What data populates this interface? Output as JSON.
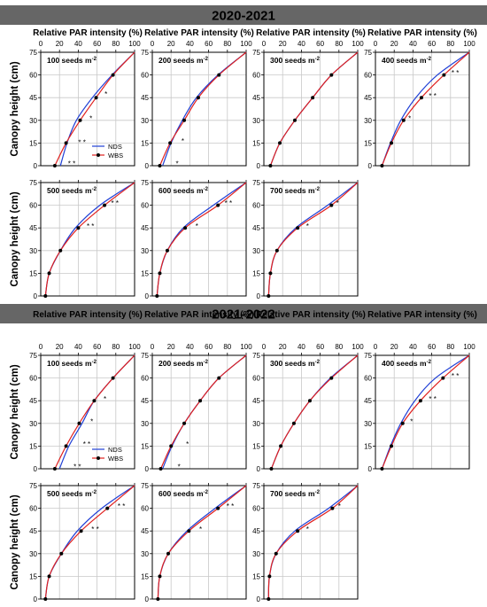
{
  "colors": {
    "banner_bg": "#666666",
    "banner_text": "#000000",
    "nds": "#1f3fd6",
    "wbs": "#e0201e",
    "grid": "#c8c8c8",
    "axis": "#000000"
  },
  "labels": {
    "x_axis": "Relative PAR intensity (%)",
    "y_axis": "Canopy height (cm)",
    "density_unit": "seeds m",
    "density_exp": "-2",
    "legend": [
      "NDS",
      "WBS"
    ]
  },
  "chart_data": [
    {
      "type": "line",
      "season": "2020-2021",
      "x_ticks": [
        0,
        20,
        40,
        60,
        80,
        100
      ],
      "y_ticks": [
        0,
        15,
        30,
        45,
        60,
        75
      ],
      "xlim": [
        0,
        100
      ],
      "ylim": [
        0,
        75
      ],
      "panels": [
        {
          "density": "100",
          "legend": true,
          "series": [
            {
              "name": "NDS",
              "x": [
                21,
                28,
                38,
                55,
                76,
                100
              ],
              "y": [
                0,
                15,
                30,
                45,
                60,
                75
              ]
            },
            {
              "name": "WBS",
              "x": [
                15,
                27,
                42,
                59,
                77,
                100
              ],
              "y": [
                0,
                15,
                30,
                45,
                60,
                75
              ]
            }
          ],
          "marks": [
            {
              "x": 29,
              "y": 2,
              "t": "* *"
            },
            {
              "x": 40,
              "y": 16,
              "t": "* *"
            },
            {
              "x": 52,
              "y": 32,
              "t": "*"
            },
            {
              "x": 68,
              "y": 48,
              "t": "*"
            }
          ]
        },
        {
          "density": "200",
          "series": [
            {
              "name": "NDS",
              "x": [
                11,
                20,
                32,
                47,
                70,
                100
              ],
              "y": [
                0,
                15,
                30,
                45,
                60,
                75
              ]
            },
            {
              "name": "WBS",
              "x": [
                8,
                19,
                34,
                49,
                71,
                100
              ],
              "y": [
                0,
                15,
                30,
                45,
                60,
                75
              ]
            }
          ],
          "marks": [
            {
              "x": 25,
              "y": 2,
              "t": "*"
            },
            {
              "x": 31,
              "y": 17,
              "t": "*"
            }
          ]
        },
        {
          "density": "300",
          "series": [
            {
              "name": "NDS",
              "x": [
                7,
                17,
                33,
                52,
                72,
                100
              ],
              "y": [
                0,
                15,
                30,
                45,
                60,
                75
              ]
            },
            {
              "name": "WBS",
              "x": [
                7,
                17,
                33,
                52,
                72,
                100
              ],
              "y": [
                0,
                15,
                30,
                45,
                60,
                75
              ]
            }
          ],
          "marks": []
        },
        {
          "density": "400",
          "series": [
            {
              "name": "NDS",
              "x": [
                7,
                16,
                27,
                43,
                66,
                100
              ],
              "y": [
                0,
                15,
                30,
                45,
                60,
                75
              ]
            },
            {
              "name": "WBS",
              "x": [
                7,
                17,
                30,
                49,
                73,
                100
              ],
              "y": [
                0,
                15,
                30,
                45,
                60,
                75
              ]
            }
          ],
          "marks": [
            {
              "x": 35,
              "y": 32,
              "t": "*"
            },
            {
              "x": 57,
              "y": 47,
              "t": "* *"
            },
            {
              "x": 81,
              "y": 62,
              "t": "* *"
            }
          ]
        },
        {
          "density": "500",
          "series": [
            {
              "name": "NDS",
              "x": [
                5,
                9,
                21,
                37,
                63,
                100
              ],
              "y": [
                0,
                15,
                30,
                45,
                60,
                75
              ]
            },
            {
              "name": "WBS",
              "x": [
                5,
                9,
                21,
                40,
                68,
                100
              ],
              "y": [
                0,
                15,
                30,
                45,
                60,
                75
              ]
            }
          ],
          "marks": [
            {
              "x": 49,
              "y": 47,
              "t": "* *"
            },
            {
              "x": 75,
              "y": 62,
              "t": "* *"
            }
          ]
        },
        {
          "density": "600",
          "series": [
            {
              "name": "NDS",
              "x": [
                5,
                8,
                16,
                33,
                65,
                100
              ],
              "y": [
                0,
                15,
                30,
                45,
                60,
                75
              ]
            },
            {
              "name": "WBS",
              "x": [
                5,
                8,
                16,
                35,
                70,
                100
              ],
              "y": [
                0,
                15,
                30,
                45,
                60,
                75
              ]
            }
          ],
          "marks": [
            {
              "x": 46,
              "y": 47,
              "t": "*"
            },
            {
              "x": 77,
              "y": 62,
              "t": "* *"
            }
          ]
        },
        {
          "density": "700",
          "series": [
            {
              "name": "NDS",
              "x": [
                5,
                7,
                14,
                34,
                68,
                100
              ],
              "y": [
                0,
                15,
                30,
                45,
                60,
                75
              ]
            },
            {
              "name": "WBS",
              "x": [
                5,
                7,
                14,
                36,
                72,
                100
              ],
              "y": [
                0,
                15,
                30,
                45,
                60,
                75
              ]
            }
          ],
          "marks": [
            {
              "x": 45,
              "y": 47,
              "t": "*"
            },
            {
              "x": 77,
              "y": 62,
              "t": "*"
            }
          ]
        }
      ]
    },
    {
      "type": "line",
      "season": "2021-2022",
      "x_ticks": [
        0,
        20,
        40,
        60,
        80,
        100
      ],
      "y_ticks": [
        0,
        15,
        30,
        45,
        60,
        75
      ],
      "xlim": [
        0,
        100
      ],
      "ylim": [
        0,
        75
      ],
      "panels": [
        {
          "density": "100",
          "legend": true,
          "series": [
            {
              "name": "NDS",
              "x": [
                20,
                30,
                44,
                57,
                77,
                100
              ],
              "y": [
                0,
                15,
                30,
                45,
                60,
                75
              ]
            },
            {
              "name": "WBS",
              "x": [
                15,
                27,
                41,
                57,
                77,
                100
              ],
              "y": [
                0,
                15,
                30,
                45,
                60,
                75
              ]
            }
          ],
          "marks": [
            {
              "x": 35,
              "y": 2,
              "t": "* *"
            },
            {
              "x": 45,
              "y": 17,
              "t": "* *"
            },
            {
              "x": 53,
              "y": 32,
              "t": "*"
            },
            {
              "x": 67,
              "y": 47,
              "t": "*"
            }
          ]
        },
        {
          "density": "200",
          "series": [
            {
              "name": "NDS",
              "x": [
                11,
                21,
                34,
                51,
                71,
                100
              ],
              "y": [
                0,
                15,
                30,
                45,
                60,
                75
              ]
            },
            {
              "name": "WBS",
              "x": [
                9,
                20,
                34,
                51,
                71,
                100
              ],
              "y": [
                0,
                15,
                30,
                45,
                60,
                75
              ]
            }
          ],
          "marks": [
            {
              "x": 27,
              "y": 2,
              "t": "*"
            },
            {
              "x": 36,
              "y": 17,
              "t": "*"
            }
          ]
        },
        {
          "density": "300",
          "series": [
            {
              "name": "NDS",
              "x": [
                8,
                18,
                32,
                49,
                71,
                100
              ],
              "y": [
                0,
                15,
                30,
                45,
                60,
                75
              ]
            },
            {
              "name": "WBS",
              "x": [
                8,
                18,
                32,
                49,
                72,
                100
              ],
              "y": [
                0,
                15,
                30,
                45,
                60,
                75
              ]
            }
          ],
          "marks": []
        },
        {
          "density": "400",
          "series": [
            {
              "name": "NDS",
              "x": [
                7,
                16,
                27,
                42,
                64,
                100
              ],
              "y": [
                0,
                15,
                30,
                45,
                60,
                75
              ]
            },
            {
              "name": "WBS",
              "x": [
                7,
                17,
                29,
                48,
                72,
                100
              ],
              "y": [
                0,
                15,
                30,
                45,
                60,
                75
              ]
            }
          ],
          "marks": [
            {
              "x": 37,
              "y": 32,
              "t": "*"
            },
            {
              "x": 57,
              "y": 47,
              "t": "* *"
            },
            {
              "x": 81,
              "y": 62,
              "t": "* *"
            }
          ]
        },
        {
          "density": "500",
          "series": [
            {
              "name": "NDS",
              "x": [
                5,
                9,
                22,
                39,
                65,
                100
              ],
              "y": [
                0,
                15,
                30,
                45,
                60,
                75
              ]
            },
            {
              "name": "WBS",
              "x": [
                5,
                9,
                22,
                43,
                71,
                100
              ],
              "y": [
                0,
                15,
                30,
                45,
                60,
                75
              ]
            }
          ],
          "marks": [
            {
              "x": 54,
              "y": 47,
              "t": "* *"
            },
            {
              "x": 82,
              "y": 62,
              "t": "* *"
            }
          ]
        },
        {
          "density": "600",
          "series": [
            {
              "name": "NDS",
              "x": [
                6,
                8,
                17,
                37,
                67,
                100
              ],
              "y": [
                0,
                15,
                30,
                45,
                60,
                75
              ]
            },
            {
              "name": "WBS",
              "x": [
                6,
                8,
                17,
                39,
                70,
                100
              ],
              "y": [
                0,
                15,
                30,
                45,
                60,
                75
              ]
            }
          ],
          "marks": [
            {
              "x": 50,
              "y": 47,
              "t": "*"
            },
            {
              "x": 79,
              "y": 62,
              "t": "* *"
            }
          ]
        },
        {
          "density": "700",
          "series": [
            {
              "name": "NDS",
              "x": [
                5,
                6,
                13,
                33,
                69,
                100
              ],
              "y": [
                0,
                15,
                30,
                45,
                60,
                75
              ]
            },
            {
              "name": "WBS",
              "x": [
                5,
                6,
                13,
                36,
                73,
                100
              ],
              "y": [
                0,
                15,
                30,
                45,
                60,
                75
              ]
            }
          ],
          "marks": [
            {
              "x": 45,
              "y": 47,
              "t": "*"
            },
            {
              "x": 79,
              "y": 62,
              "t": "*"
            }
          ]
        }
      ]
    }
  ]
}
